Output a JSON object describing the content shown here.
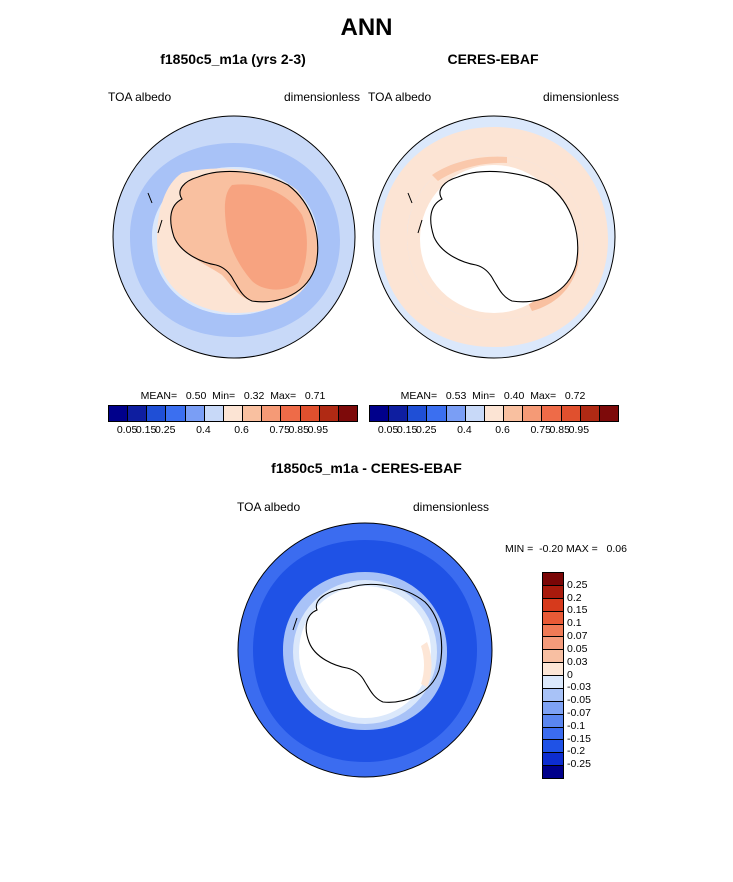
{
  "title": "ANN",
  "palette": {
    "colorbar_12": [
      "#00008b",
      "#0e1ea0",
      "#1f4fd6",
      "#3b6ff0",
      "#7a9ef5",
      "#c8d9f8",
      "#fce4d4",
      "#f9c0a0",
      "#f59a76",
      "#ee6b48",
      "#e0502e",
      "#b02a14",
      "#7d0a0a"
    ],
    "diff_colors": [
      "#00008b",
      "#0d2dd0",
      "#1f52e6",
      "#3b6cf0",
      "#5a86f0",
      "#7ea2f4",
      "#a8c2f7",
      "#dbe8fb",
      "#fde6d6",
      "#f8bfa2",
      "#f49b7b",
      "#ef7a56",
      "#e85a36",
      "#d63a1c",
      "#a81a0c",
      "#7a0606"
    ]
  },
  "panels": [
    {
      "title": "f1850c5_m1a (yrs 2-3)",
      "left_label": "TOA albedo",
      "right_label": "dimensionless",
      "stats": "MEAN=   0.50  Min=   0.32  Max=   0.71",
      "colorbar_ticks": [
        "0.05",
        "0.15",
        "0.25",
        "0.4",
        "0.6",
        "0.75",
        "0.85",
        "0.95"
      ]
    },
    {
      "title": "CERES-EBAF",
      "left_label": "TOA albedo",
      "right_label": "dimensionless",
      "stats": "MEAN=   0.53  Min=   0.40  Max=   0.72",
      "colorbar_ticks": [
        "0.05",
        "0.15",
        "0.25",
        "0.4",
        "0.6",
        "0.75",
        "0.85",
        "0.95"
      ]
    }
  ],
  "diff_panel": {
    "title": "f1850c5_m1a - CERES-EBAF",
    "left_label": "TOA albedo",
    "right_label": "dimensionless",
    "minmax": "MIN =  -0.20 MAX =   0.06",
    "colorbar_ticks": [
      "0.25",
      "0.2",
      "0.15",
      "0.1",
      "0.07",
      "0.05",
      "0.03",
      "0",
      "-0.03",
      "-0.05",
      "-0.07",
      "-0.1",
      "-0.15",
      "-0.2",
      "-0.25"
    ]
  },
  "chart_data": [
    {
      "type": "heatmap",
      "projection": "south polar stereographic",
      "title": "f1850c5_m1a (yrs 2-3)",
      "variable": "TOA albedo",
      "units": "dimensionless",
      "mean": 0.5,
      "min": 0.32,
      "max": 0.71,
      "levels": [
        0.05,
        0.1,
        0.15,
        0.2,
        0.25,
        0.3,
        0.4,
        0.5,
        0.6,
        0.7,
        0.75,
        0.8,
        0.85,
        0.9,
        0.95
      ]
    },
    {
      "type": "heatmap",
      "projection": "south polar stereographic",
      "title": "CERES-EBAF",
      "variable": "TOA albedo",
      "units": "dimensionless",
      "mean": 0.53,
      "min": 0.4,
      "max": 0.72,
      "levels": [
        0.05,
        0.1,
        0.15,
        0.2,
        0.25,
        0.3,
        0.4,
        0.5,
        0.6,
        0.7,
        0.75,
        0.8,
        0.85,
        0.9,
        0.95
      ]
    },
    {
      "type": "heatmap",
      "projection": "south polar stereographic",
      "title": "f1850c5_m1a - CERES-EBAF",
      "variable": "TOA albedo",
      "units": "dimensionless",
      "min": -0.2,
      "max": 0.06,
      "levels": [
        -0.25,
        -0.2,
        -0.15,
        -0.1,
        -0.07,
        -0.05,
        -0.03,
        0,
        0.03,
        0.05,
        0.07,
        0.1,
        0.15,
        0.2,
        0.25
      ]
    }
  ]
}
